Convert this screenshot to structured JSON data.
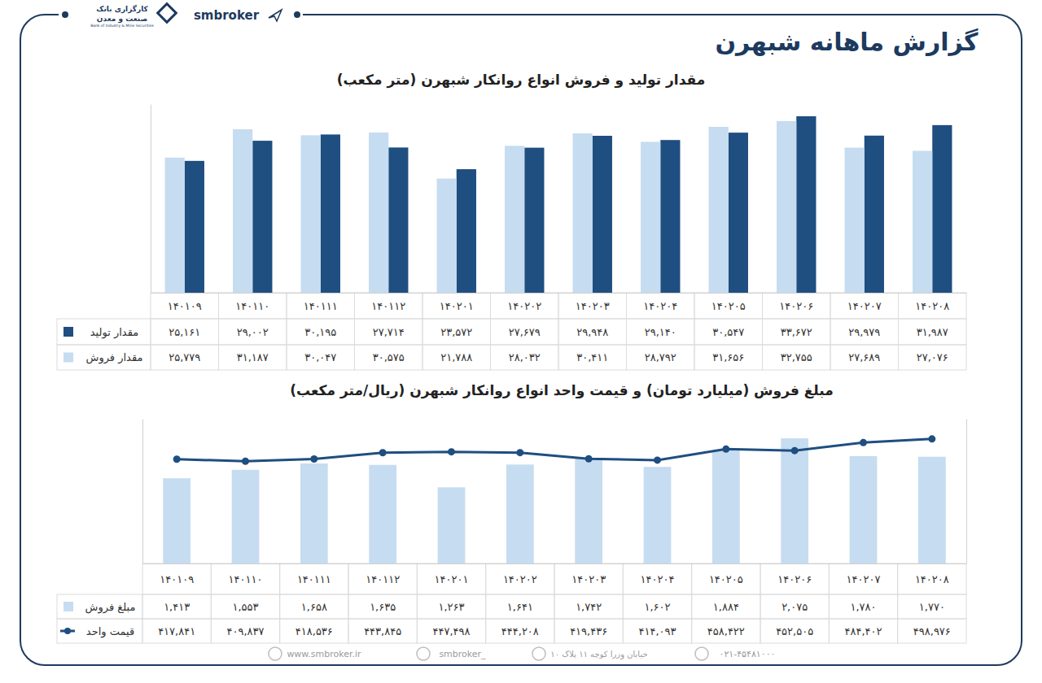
{
  "header": {
    "title": "گزارش ماهانه شبهرن",
    "brand": "smbroker",
    "broker_fa_1": "کارگزاری بانک",
    "broker_fa_2": "صنعت و معدن",
    "broker_en": "Bank of Industry & Mine Securities"
  },
  "footer": {
    "website": "www.smbroker.ir",
    "instagram": "smbroker_",
    "address": "خیابان وزرا کوچه ۱۱ پلاک ۱۰",
    "phone": "۰۲۱-۴۵۴۸۱۰۰۰"
  },
  "chart_data": [
    {
      "type": "bar",
      "title": "مقدار تولید و فروش انواع روانکار شبهرن (متر مکعب)",
      "categories": [
        "۱۴۰۱۰۹",
        "۱۴۰۱۱۰",
        "۱۴۰۱۱۱",
        "۱۴۰۱۱۲",
        "۱۴۰۲۰۱",
        "۱۴۰۲۰۲",
        "۱۴۰۲۰۳",
        "۱۴۰۲۰۴",
        "۱۴۰۲۰۵",
        "۱۴۰۲۰۶",
        "۱۴۰۲۰۷",
        "۱۴۰۲۰۸"
      ],
      "series": [
        {
          "name": "مقدار تولید",
          "color": "#1f4e80",
          "values": [
            25161,
            29002,
            30195,
            27714,
            23572,
            27679,
            29948,
            29140,
            30547,
            33672,
            29979,
            31987
          ],
          "value_labels": [
            "۲۵,۱۶۱",
            "۲۹,۰۰۲",
            "۳۰,۱۹۵",
            "۲۷,۷۱۴",
            "۲۳,۵۷۲",
            "۲۷,۶۷۹",
            "۲۹,۹۴۸",
            "۲۹,۱۴۰",
            "۳۰,۵۴۷",
            "۳۳,۶۷۲",
            "۲۹,۹۷۹",
            "۳۱,۹۸۷"
          ]
        },
        {
          "name": "مقدار فروش",
          "color": "#c6dcf0",
          "values": [
            25779,
            31187,
            30047,
            30575,
            21788,
            28032,
            30411,
            28792,
            31656,
            32755,
            27689,
            27076
          ],
          "value_labels": [
            "۲۵,۷۷۹",
            "۳۱,۱۸۷",
            "۳۰,۰۴۷",
            "۳۰,۵۷۵",
            "۲۱,۷۸۸",
            "۲۸,۰۳۲",
            "۳۰,۴۱۱",
            "۲۸,۷۹۲",
            "۳۱,۶۵۶",
            "۳۲,۷۵۵",
            "۲۷,۶۸۹",
            "۲۷,۰۷۶"
          ]
        }
      ],
      "ylim": [
        0,
        36000
      ],
      "yticks": [],
      "grid": false,
      "tick_labels": "x"
    },
    {
      "type": "bar",
      "title": "مبلغ فروش (میلیارد تومان) و قیمت واحد انواع روانکار شبهرن (ریال/متر مکعب)",
      "categories": [
        "۱۴۰۱۰۹",
        "۱۴۰۱۱۰",
        "۱۴۰۱۱۱",
        "۱۴۰۱۱۲",
        "۱۴۰۲۰۱",
        "۱۴۰۲۰۲",
        "۱۴۰۲۰۳",
        "۱۴۰۲۰۴",
        "۱۴۰۲۰۵",
        "۱۴۰۲۰۶",
        "۱۴۰۲۰۷",
        "۱۴۰۲۰۸"
      ],
      "series": [
        {
          "name": "مبلغ فروش",
          "type": "bar",
          "color": "#c6dcf0",
          "values": [
            1413,
            1553,
            1658,
            1635,
            1263,
            1641,
            1742,
            1602,
            1884,
            2075,
            1780,
            1770
          ],
          "value_labels": [
            "۱,۴۱۳",
            "۱,۵۵۳",
            "۱,۶۵۸",
            "۱,۶۳۵",
            "۱,۲۶۳",
            "۱,۶۴۱",
            "۱,۷۴۲",
            "۱,۶۰۲",
            "۱,۸۸۴",
            "۲,۰۷۵",
            "۱,۷۸۰",
            "۱,۷۷۰"
          ]
        },
        {
          "name": "قیمت واحد",
          "type": "line",
          "axis": "y2",
          "color": "#1f4e80",
          "marker": "circle",
          "values": [
            417841,
            409837,
            418536,
            443845,
            447498,
            444208,
            419436,
            414093,
            458422,
            452505,
            484402,
            498976
          ],
          "value_labels": [
            "۴۱۷,۸۴۱",
            "۴۰۹,۸۳۷",
            "۴۱۸,۵۳۶",
            "۴۴۳,۸۴۵",
            "۴۴۷,۴۹۸",
            "۴۴۴,۲۰۸",
            "۴۱۹,۴۳۶",
            "۴۱۴,۰۹۳",
            "۴۵۸,۴۲۲",
            "۴۵۲,۵۰۵",
            "۴۸۴,۴۰۲",
            "۴۹۸,۹۷۶"
          ]
        }
      ],
      "ylim": [
        0,
        2400
      ],
      "yticks": [],
      "y2lim": [
        0,
        580000
      ],
      "y2ticks": [],
      "grid": false,
      "tick_labels": "x"
    }
  ]
}
